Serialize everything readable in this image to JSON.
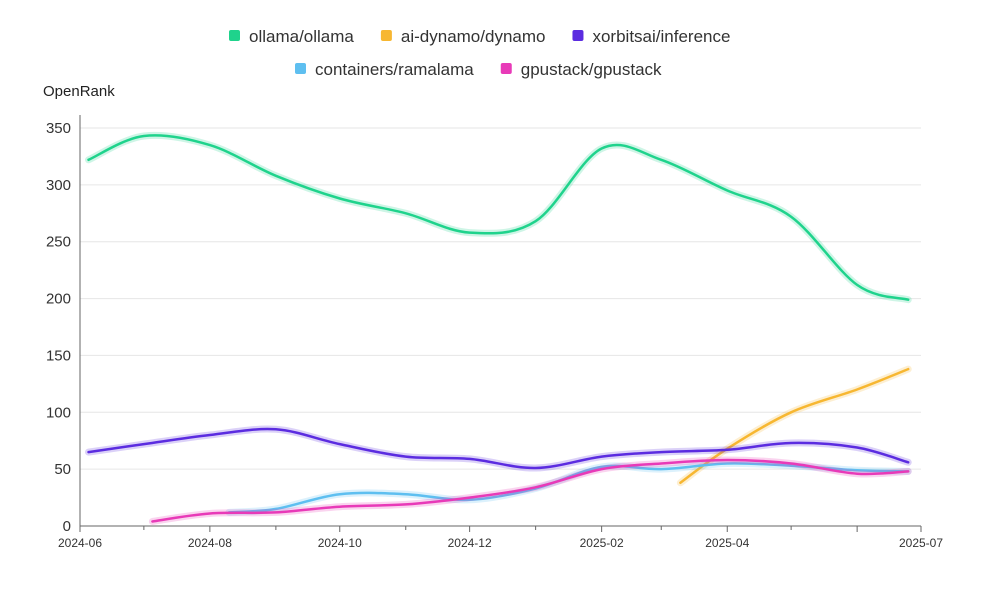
{
  "chart_data": {
    "type": "line",
    "ylabel": "OpenRank",
    "ylim": [
      0,
      350
    ],
    "yticks": [
      0,
      50,
      100,
      150,
      200,
      250,
      300,
      350
    ],
    "xlim": [
      "2024-06",
      "2025-07"
    ],
    "xticks": [
      "2024-06",
      "2024-08",
      "2024-10",
      "2024-12",
      "2025-02",
      "2025-04",
      "2025-07"
    ],
    "grid": true,
    "legend_position": "top-center",
    "series": [
      {
        "name": "ollama/ollama",
        "color": "#1fd38c",
        "points": [
          [
            "2024-06-05",
            322
          ],
          [
            "2024-07-01",
            343
          ],
          [
            "2024-08-01",
            335
          ],
          [
            "2024-09-01",
            308
          ],
          [
            "2024-10-01",
            288
          ],
          [
            "2024-11-01",
            275
          ],
          [
            "2024-12-01",
            258
          ],
          [
            "2025-01-01",
            268
          ],
          [
            "2025-02-01",
            332
          ],
          [
            "2025-03-01",
            322
          ],
          [
            "2025-04-01",
            295
          ],
          [
            "2025-05-01",
            272
          ],
          [
            "2025-06-01",
            212
          ],
          [
            "2025-06-25",
            199
          ]
        ]
      },
      {
        "name": "ai-dynamo/dynamo",
        "color": "#f7b731",
        "points": [
          [
            "2025-03-10",
            38
          ],
          [
            "2025-04-01",
            68
          ],
          [
            "2025-05-01",
            100
          ],
          [
            "2025-06-01",
            120
          ],
          [
            "2025-06-25",
            138
          ]
        ]
      },
      {
        "name": "xorbitsai/inference",
        "color": "#5b2ce0",
        "points": [
          [
            "2024-06-05",
            65
          ],
          [
            "2024-07-01",
            72
          ],
          [
            "2024-08-01",
            80
          ],
          [
            "2024-09-01",
            85
          ],
          [
            "2024-10-01",
            72
          ],
          [
            "2024-11-01",
            61
          ],
          [
            "2024-12-01",
            59
          ],
          [
            "2025-01-01",
            51
          ],
          [
            "2025-02-01",
            61
          ],
          [
            "2025-03-01",
            65
          ],
          [
            "2025-04-01",
            67
          ],
          [
            "2025-05-01",
            73
          ],
          [
            "2025-06-01",
            69
          ],
          [
            "2025-06-25",
            56
          ]
        ]
      },
      {
        "name": "containers/ramalama",
        "color": "#5ebff0",
        "points": [
          [
            "2024-08-10",
            12
          ],
          [
            "2024-09-01",
            15
          ],
          [
            "2024-10-01",
            28
          ],
          [
            "2024-11-01",
            28
          ],
          [
            "2024-12-01",
            23
          ],
          [
            "2025-01-01",
            33
          ],
          [
            "2025-02-01",
            52
          ],
          [
            "2025-03-01",
            50
          ],
          [
            "2025-04-01",
            55
          ],
          [
            "2025-05-01",
            53
          ],
          [
            "2025-06-01",
            49
          ],
          [
            "2025-06-25",
            48
          ]
        ]
      },
      {
        "name": "gpustack/gpustack",
        "color": "#e83ab8",
        "points": [
          [
            "2024-07-05",
            4
          ],
          [
            "2024-08-01",
            11
          ],
          [
            "2024-09-01",
            12
          ],
          [
            "2024-10-01",
            17
          ],
          [
            "2024-11-01",
            19
          ],
          [
            "2024-12-01",
            25
          ],
          [
            "2025-01-01",
            34
          ],
          [
            "2025-02-01",
            50
          ],
          [
            "2025-03-01",
            55
          ],
          [
            "2025-04-01",
            58
          ],
          [
            "2025-05-01",
            55
          ],
          [
            "2025-06-01",
            46
          ],
          [
            "2025-06-25",
            48
          ]
        ]
      }
    ]
  }
}
